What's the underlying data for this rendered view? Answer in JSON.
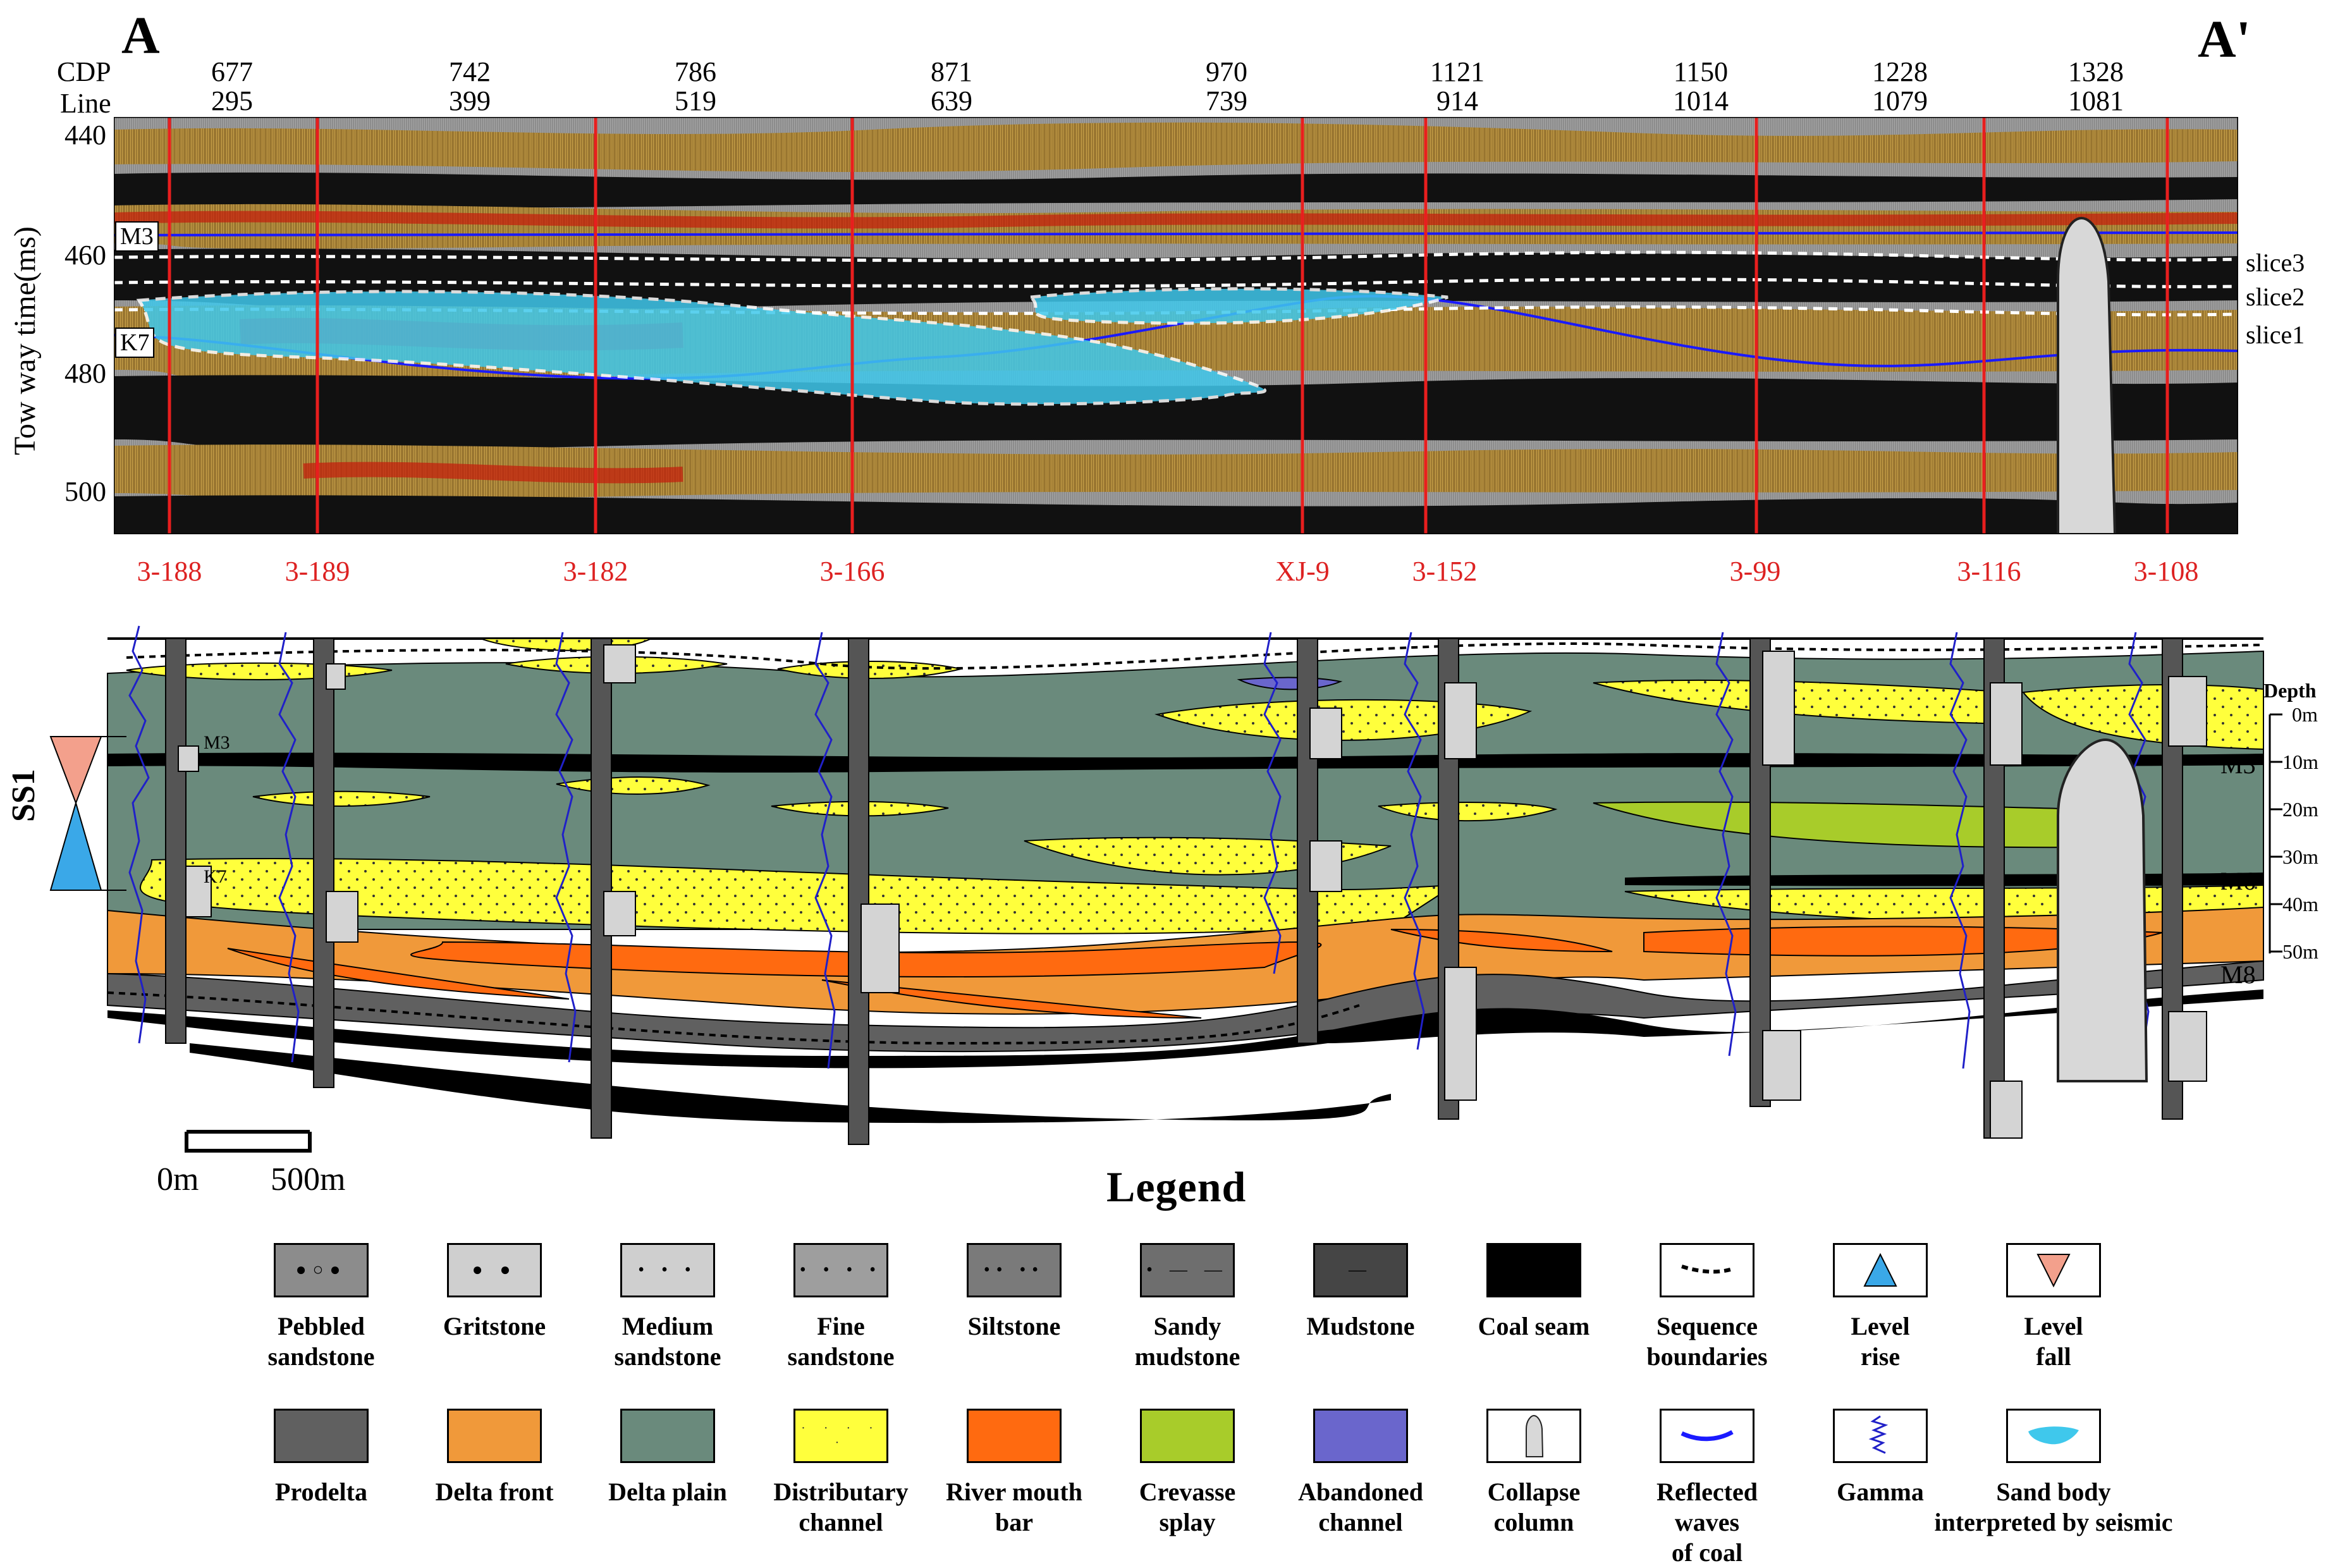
{
  "panel_labels": {
    "left": "A",
    "right": "A'"
  },
  "seismic": {
    "row_labels": {
      "cdp": "CDP",
      "line": "Line"
    },
    "cdp_values": [
      "677",
      "742",
      "786",
      "871",
      "970",
      "1121",
      "1150",
      "1228",
      "1328"
    ],
    "line_values": [
      "295",
      "399",
      "519",
      "639",
      "739",
      "914",
      "1014",
      "1079",
      "1081"
    ],
    "axis_title": "Tow way time(ms)",
    "time_ticks": [
      "440",
      "460",
      "480",
      "500"
    ],
    "horizons": {
      "m3": "M3",
      "k7": "K7"
    },
    "slices": [
      "slice3",
      "slice2",
      "slice1"
    ]
  },
  "section": {
    "wells": [
      "3-188",
      "3-189",
      "3-182",
      "3-166",
      "XJ-9",
      "3-152",
      "3-99",
      "3-116",
      "3-108"
    ],
    "sequence_label": "SS1",
    "inner_labels": {
      "m3": "M3",
      "k7": "K7"
    },
    "coal_labels": {
      "m3": "M3",
      "m6": "M6",
      "m8": "M8"
    },
    "depth_title": "Depth",
    "depth_ticks": [
      "0m",
      "10m",
      "20m",
      "30m",
      "40m",
      "50m"
    ],
    "scale_bar": {
      "start": "0m",
      "end": "500m"
    }
  },
  "legend": {
    "title": "Legend",
    "row1": [
      {
        "label_1": "Pebbled",
        "label_2": "sandstone",
        "icon": "pebbled-sandstone-pattern"
      },
      {
        "label_1": "Gritstone",
        "label_2": "",
        "icon": "gritstone-pattern"
      },
      {
        "label_1": "Medium",
        "label_2": "sandstone",
        "icon": "medium-sandstone-pattern"
      },
      {
        "label_1": "Fine",
        "label_2": "sandstone",
        "icon": "fine-sandstone-pattern"
      },
      {
        "label_1": "Siltstone",
        "label_2": "",
        "icon": "siltstone-pattern"
      },
      {
        "label_1": "Sandy",
        "label_2": "mudstone",
        "icon": "sandy-mudstone-pattern"
      },
      {
        "label_1": "Mudstone",
        "label_2": "",
        "icon": "mudstone-pattern"
      },
      {
        "label_1": "Coal seam",
        "label_2": "",
        "icon": "coal-seam-pattern"
      },
      {
        "label_1": "Sequence",
        "label_2": "boundaries",
        "icon": "sequence-boundary-line"
      },
      {
        "label_1": "Level",
        "label_2": "rise",
        "icon": "level-rise-triangle"
      },
      {
        "label_1": "Level",
        "label_2": "fall",
        "icon": "level-fall-triangle"
      }
    ],
    "row2": [
      {
        "label_1": "Prodelta",
        "label_2": "",
        "color": "#606060"
      },
      {
        "label_1": "Delta front",
        "label_2": "",
        "color": "#f0993a"
      },
      {
        "label_1": "Delta plain",
        "label_2": "",
        "color": "#6a8a7c"
      },
      {
        "label_1": "Distributary",
        "label_2": "channel",
        "color": "#ffff3c"
      },
      {
        "label_1": "River mouth",
        "label_2": "bar",
        "color": "#ff6a10"
      },
      {
        "label_1": "Crevasse",
        "label_2": "splay",
        "color": "#a8cc2a"
      },
      {
        "label_1": "Abandoned",
        "label_2": "channel",
        "color": "#6a66cc"
      },
      {
        "label_1": "Collapse",
        "label_2": "column",
        "icon": "collapse-column-icon"
      },
      {
        "label_1": "Reflected waves",
        "label_2": "of coal",
        "icon": "reflected-wave-icon"
      },
      {
        "label_1": "Gamma",
        "label_2": "",
        "icon": "gamma-curve-icon"
      },
      {
        "label_1": "Sand body",
        "label_2": "interpreted by seismic",
        "icon": "sand-body-icon"
      }
    ]
  }
}
